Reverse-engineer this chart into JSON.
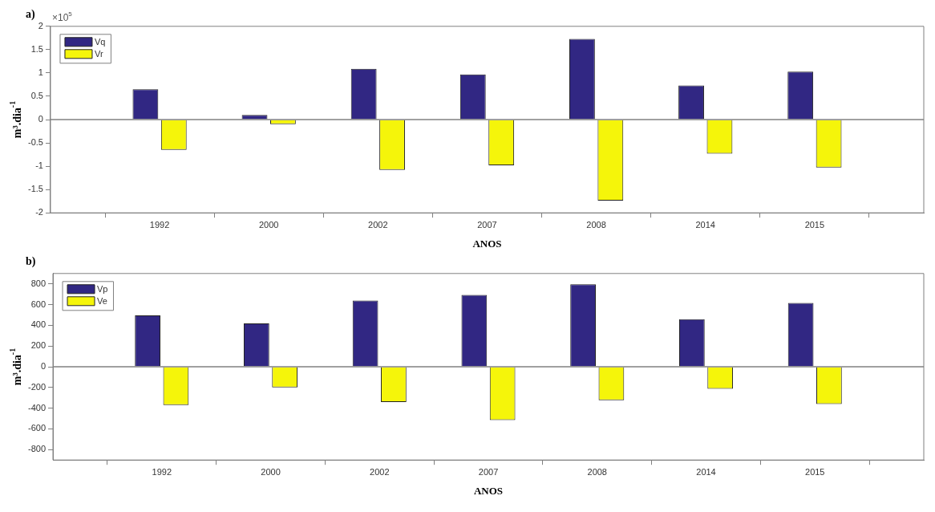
{
  "chart_data": [
    {
      "type": "bar",
      "title": "a)",
      "xlabel": "ANOS",
      "ylabel": "m³.dia$^{-1}$",
      "annotations": [
        "×10$^{5}$"
      ],
      "categories": [
        "1992",
        "2000",
        "2002",
        "2007",
        "2008",
        "2014",
        "2015"
      ],
      "series": [
        {
          "name": "Vq",
          "color": "#312783",
          "values": [
            0.65,
            0.1,
            1.09,
            0.97,
            1.73,
            0.73,
            1.03
          ]
        },
        {
          "name": "Vr",
          "color": "#f5f50a",
          "values": [
            -0.65,
            -0.1,
            -1.08,
            -0.98,
            -1.74,
            -0.73,
            -1.03
          ]
        }
      ],
      "ylim": [
        -2,
        2
      ],
      "yticks": [
        -2,
        -1.5,
        -1,
        -0.5,
        0,
        0.5,
        1,
        1.5,
        2
      ],
      "ref_lines": [
        {
          "axis": "y",
          "value": 0,
          "color": "#808080"
        }
      ],
      "legend": "top left",
      "grid": false
    },
    {
      "type": "bar",
      "title": "b)",
      "xlabel": "ANOS",
      "ylabel": "m³.dia$^{-1}$",
      "categories": [
        "1992",
        "2000",
        "2002",
        "2007",
        "2008",
        "2014",
        "2015"
      ],
      "series": [
        {
          "name": "Vp",
          "color": "#312783",
          "values": [
            496,
            418,
            639,
            693,
            795,
            459,
            615
          ]
        },
        {
          "name": "Ve",
          "color": "#f5f50a",
          "values": [
            -370,
            -200,
            -340,
            -516,
            -324,
            -213,
            -360
          ]
        }
      ],
      "ylim": [
        -900,
        900
      ],
      "yticks": [
        -800,
        -600,
        -400,
        -200,
        0,
        200,
        400,
        600,
        800
      ],
      "ref_lines": [
        {
          "axis": "y",
          "value": 0,
          "color": "#808080"
        }
      ],
      "legend": "top left",
      "grid": false
    }
  ]
}
